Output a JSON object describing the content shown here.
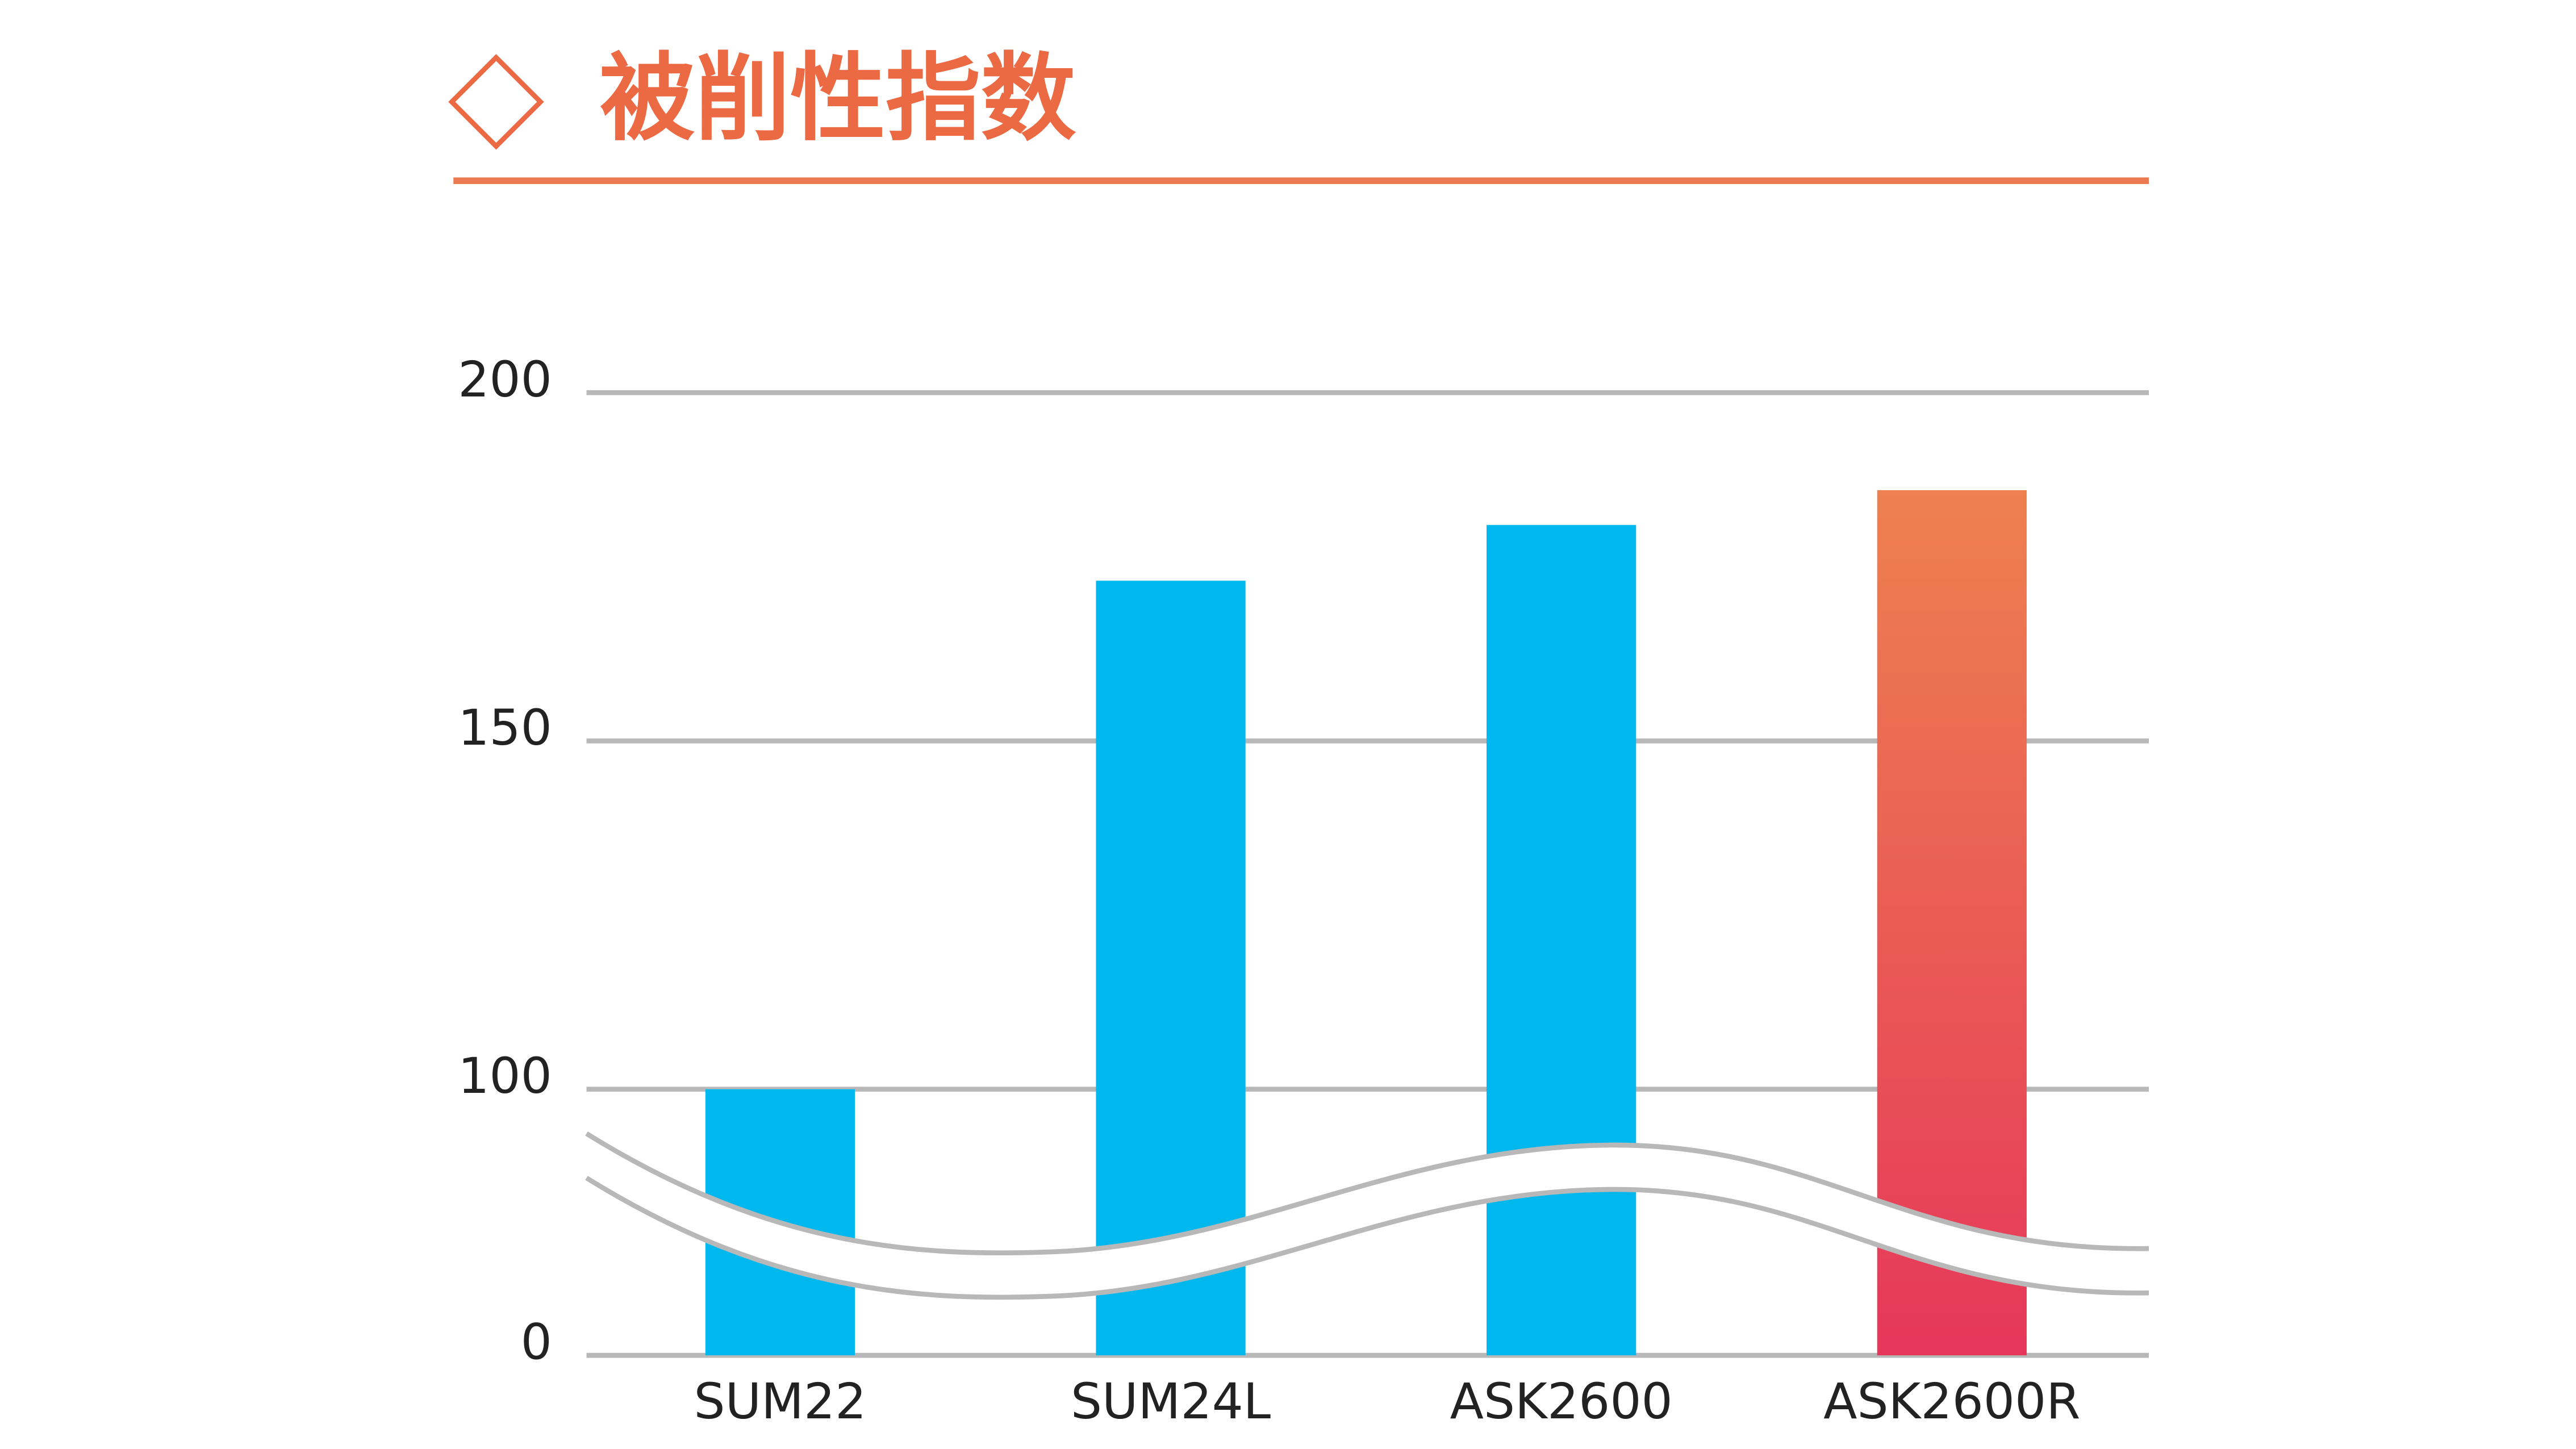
{
  "chart_data": {
    "type": "bar",
    "title": "被削性指数",
    "categories": [
      "SUM22",
      "SUM24L",
      "ASK2600",
      "ASK2600R"
    ],
    "values": [
      100,
      173,
      181,
      186
    ],
    "colors": [
      "#00b8ee",
      "#00b8ee",
      "#00b8ee",
      [
        "#ee8150",
        "#e6375a"
      ]
    ],
    "ylim": [
      0,
      200
    ],
    "yticks": [
      0,
      100,
      150,
      200
    ],
    "grid": true,
    "axis_break": true
  }
}
